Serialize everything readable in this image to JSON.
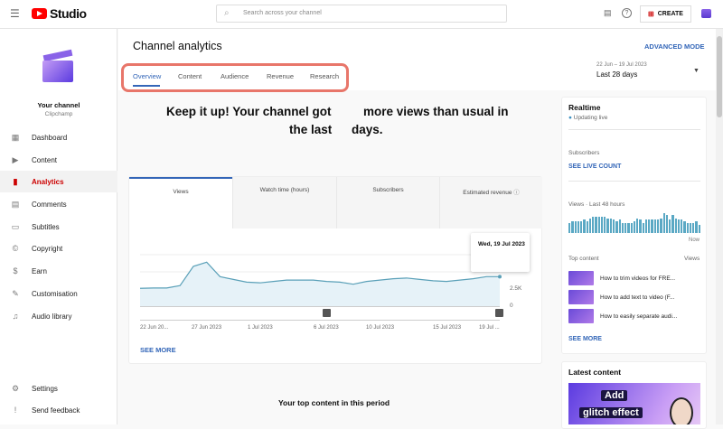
{
  "header": {
    "logo": "Studio",
    "search_placeholder": "Search across your channel",
    "create": "CREATE"
  },
  "sidebar": {
    "channel_title": "Your channel",
    "channel_name": "Clipchamp",
    "items": [
      {
        "label": "Dashboard",
        "icon": "dashboard-icon"
      },
      {
        "label": "Content",
        "icon": "content-icon"
      },
      {
        "label": "Analytics",
        "icon": "analytics-icon",
        "active": true
      },
      {
        "label": "Comments",
        "icon": "comments-icon"
      },
      {
        "label": "Subtitles",
        "icon": "subtitles-icon"
      },
      {
        "label": "Copyright",
        "icon": "copyright-icon"
      },
      {
        "label": "Earn",
        "icon": "earn-icon"
      },
      {
        "label": "Customisation",
        "icon": "customisation-icon"
      },
      {
        "label": "Audio library",
        "icon": "audio-library-icon"
      }
    ],
    "bottom": [
      {
        "label": "Settings",
        "icon": "settings-icon"
      },
      {
        "label": "Send feedback",
        "icon": "feedback-icon"
      }
    ]
  },
  "page": {
    "title": "Channel analytics",
    "advanced": "ADVANCED MODE",
    "tabs": [
      "Overview",
      "Content",
      "Audience",
      "Revenue",
      "Research"
    ],
    "active_tab": "Overview",
    "date_range": "22 Jun – 19 Jul 2023",
    "period": "Last 28 days",
    "headline_1": "Keep it up! Your channel got",
    "headline_2": "more views than usual in",
    "headline_3": "the last",
    "headline_4": "days.",
    "top_content_heading": "Your top content in this period"
  },
  "metrics": {
    "tabs": [
      "Views",
      "Watch time (hours)",
      "Subscribers",
      "Estimated revenue"
    ],
    "tooltip": "Wed, 19 Jul 2023",
    "see_more": "SEE MORE"
  },
  "chart_data": {
    "type": "area",
    "x_labels": [
      "22 Jun 20...",
      "27 Jun 2023",
      "1 Jul 2023",
      "6 Jul 2023",
      "10 Jul 2023",
      "15 Jul 2023",
      "19 Jul ..."
    ],
    "y_ticks": [
      "0",
      "2.5K"
    ],
    "ylim": [
      0,
      7500
    ],
    "values": [
      2600,
      2650,
      2650,
      3000,
      5800,
      6400,
      4300,
      3900,
      3500,
      3400,
      3600,
      3800,
      3800,
      3800,
      3600,
      3500,
      3200,
      3600,
      3800,
      4000,
      4100,
      3900,
      3700,
      3600,
      3800,
      4000,
      4300,
      4300
    ]
  },
  "realtime": {
    "title": "Realtime",
    "status": "Updating live",
    "subs_label": "Subscribers",
    "live_count": "SEE LIVE COUNT",
    "views_label": "Views · Last 48 hours",
    "now": "Now",
    "bars": [
      6,
      7,
      7,
      7,
      7,
      8,
      7,
      9,
      10,
      10,
      10,
      10,
      10,
      9,
      9,
      8,
      7,
      8,
      6,
      6,
      6,
      6,
      7,
      9,
      8,
      6,
      8,
      8,
      8,
      8,
      8,
      9,
      12,
      11,
      8,
      11,
      9,
      8,
      8,
      7,
      6,
      6,
      6,
      7,
      5
    ],
    "top_content": "Top content",
    "views_col": "Views",
    "videos": [
      "How to trim videos for FRE...",
      "How to add text to video (F...",
      "How to easily separate audi..."
    ],
    "see_more": "SEE MORE"
  },
  "latest": {
    "title": "Latest content",
    "thumb_text_1": "Add",
    "thumb_text_2": "glitch effect"
  },
  "colors": {
    "accent": "#3366b8",
    "brand": "#ff0000",
    "line": "#5aa0b8",
    "highlight": "#e8766a"
  }
}
